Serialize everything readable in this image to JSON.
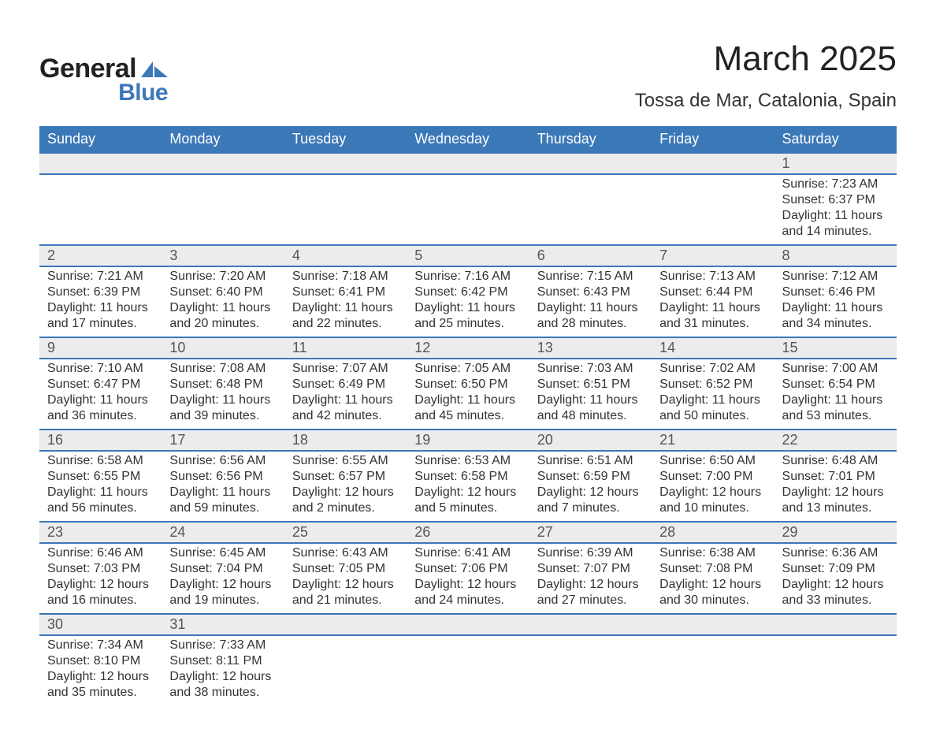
{
  "brand": {
    "line1": "General",
    "line2": "Blue",
    "accent_color": "#3b78b8"
  },
  "title": "March 2025",
  "location": "Tossa de Mar, Catalonia, Spain",
  "colors": {
    "header_bg": "#3b78b8",
    "header_text": "#ffffff",
    "daynum_bg": "#ececec",
    "row_divider": "#3b78b8",
    "text": "#333333",
    "page_bg": "#ffffff"
  },
  "typography": {
    "title_fontsize_pt": 33,
    "location_fontsize_pt": 18,
    "header_fontsize_pt": 14,
    "daynum_fontsize_pt": 14,
    "body_fontsize_pt": 12,
    "font_family": "Arial"
  },
  "calendar": {
    "type": "table",
    "columns": [
      "Sunday",
      "Monday",
      "Tuesday",
      "Wednesday",
      "Thursday",
      "Friday",
      "Saturday"
    ],
    "first_weekday_index": 6,
    "weeks": [
      [
        null,
        null,
        null,
        null,
        null,
        null,
        {
          "day": "1",
          "sunrise": "Sunrise: 7:23 AM",
          "sunset": "Sunset: 6:37 PM",
          "daylight": "Daylight: 11 hours and 14 minutes."
        }
      ],
      [
        {
          "day": "2",
          "sunrise": "Sunrise: 7:21 AM",
          "sunset": "Sunset: 6:39 PM",
          "daylight": "Daylight: 11 hours and 17 minutes."
        },
        {
          "day": "3",
          "sunrise": "Sunrise: 7:20 AM",
          "sunset": "Sunset: 6:40 PM",
          "daylight": "Daylight: 11 hours and 20 minutes."
        },
        {
          "day": "4",
          "sunrise": "Sunrise: 7:18 AM",
          "sunset": "Sunset: 6:41 PM",
          "daylight": "Daylight: 11 hours and 22 minutes."
        },
        {
          "day": "5",
          "sunrise": "Sunrise: 7:16 AM",
          "sunset": "Sunset: 6:42 PM",
          "daylight": "Daylight: 11 hours and 25 minutes."
        },
        {
          "day": "6",
          "sunrise": "Sunrise: 7:15 AM",
          "sunset": "Sunset: 6:43 PM",
          "daylight": "Daylight: 11 hours and 28 minutes."
        },
        {
          "day": "7",
          "sunrise": "Sunrise: 7:13 AM",
          "sunset": "Sunset: 6:44 PM",
          "daylight": "Daylight: 11 hours and 31 minutes."
        },
        {
          "day": "8",
          "sunrise": "Sunrise: 7:12 AM",
          "sunset": "Sunset: 6:46 PM",
          "daylight": "Daylight: 11 hours and 34 minutes."
        }
      ],
      [
        {
          "day": "9",
          "sunrise": "Sunrise: 7:10 AM",
          "sunset": "Sunset: 6:47 PM",
          "daylight": "Daylight: 11 hours and 36 minutes."
        },
        {
          "day": "10",
          "sunrise": "Sunrise: 7:08 AM",
          "sunset": "Sunset: 6:48 PM",
          "daylight": "Daylight: 11 hours and 39 minutes."
        },
        {
          "day": "11",
          "sunrise": "Sunrise: 7:07 AM",
          "sunset": "Sunset: 6:49 PM",
          "daylight": "Daylight: 11 hours and 42 minutes."
        },
        {
          "day": "12",
          "sunrise": "Sunrise: 7:05 AM",
          "sunset": "Sunset: 6:50 PM",
          "daylight": "Daylight: 11 hours and 45 minutes."
        },
        {
          "day": "13",
          "sunrise": "Sunrise: 7:03 AM",
          "sunset": "Sunset: 6:51 PM",
          "daylight": "Daylight: 11 hours and 48 minutes."
        },
        {
          "day": "14",
          "sunrise": "Sunrise: 7:02 AM",
          "sunset": "Sunset: 6:52 PM",
          "daylight": "Daylight: 11 hours and 50 minutes."
        },
        {
          "day": "15",
          "sunrise": "Sunrise: 7:00 AM",
          "sunset": "Sunset: 6:54 PM",
          "daylight": "Daylight: 11 hours and 53 minutes."
        }
      ],
      [
        {
          "day": "16",
          "sunrise": "Sunrise: 6:58 AM",
          "sunset": "Sunset: 6:55 PM",
          "daylight": "Daylight: 11 hours and 56 minutes."
        },
        {
          "day": "17",
          "sunrise": "Sunrise: 6:56 AM",
          "sunset": "Sunset: 6:56 PM",
          "daylight": "Daylight: 11 hours and 59 minutes."
        },
        {
          "day": "18",
          "sunrise": "Sunrise: 6:55 AM",
          "sunset": "Sunset: 6:57 PM",
          "daylight": "Daylight: 12 hours and 2 minutes."
        },
        {
          "day": "19",
          "sunrise": "Sunrise: 6:53 AM",
          "sunset": "Sunset: 6:58 PM",
          "daylight": "Daylight: 12 hours and 5 minutes."
        },
        {
          "day": "20",
          "sunrise": "Sunrise: 6:51 AM",
          "sunset": "Sunset: 6:59 PM",
          "daylight": "Daylight: 12 hours and 7 minutes."
        },
        {
          "day": "21",
          "sunrise": "Sunrise: 6:50 AM",
          "sunset": "Sunset: 7:00 PM",
          "daylight": "Daylight: 12 hours and 10 minutes."
        },
        {
          "day": "22",
          "sunrise": "Sunrise: 6:48 AM",
          "sunset": "Sunset: 7:01 PM",
          "daylight": "Daylight: 12 hours and 13 minutes."
        }
      ],
      [
        {
          "day": "23",
          "sunrise": "Sunrise: 6:46 AM",
          "sunset": "Sunset: 7:03 PM",
          "daylight": "Daylight: 12 hours and 16 minutes."
        },
        {
          "day": "24",
          "sunrise": "Sunrise: 6:45 AM",
          "sunset": "Sunset: 7:04 PM",
          "daylight": "Daylight: 12 hours and 19 minutes."
        },
        {
          "day": "25",
          "sunrise": "Sunrise: 6:43 AM",
          "sunset": "Sunset: 7:05 PM",
          "daylight": "Daylight: 12 hours and 21 minutes."
        },
        {
          "day": "26",
          "sunrise": "Sunrise: 6:41 AM",
          "sunset": "Sunset: 7:06 PM",
          "daylight": "Daylight: 12 hours and 24 minutes."
        },
        {
          "day": "27",
          "sunrise": "Sunrise: 6:39 AM",
          "sunset": "Sunset: 7:07 PM",
          "daylight": "Daylight: 12 hours and 27 minutes."
        },
        {
          "day": "28",
          "sunrise": "Sunrise: 6:38 AM",
          "sunset": "Sunset: 7:08 PM",
          "daylight": "Daylight: 12 hours and 30 minutes."
        },
        {
          "day": "29",
          "sunrise": "Sunrise: 6:36 AM",
          "sunset": "Sunset: 7:09 PM",
          "daylight": "Daylight: 12 hours and 33 minutes."
        }
      ],
      [
        {
          "day": "30",
          "sunrise": "Sunrise: 7:34 AM",
          "sunset": "Sunset: 8:10 PM",
          "daylight": "Daylight: 12 hours and 35 minutes."
        },
        {
          "day": "31",
          "sunrise": "Sunrise: 7:33 AM",
          "sunset": "Sunset: 8:11 PM",
          "daylight": "Daylight: 12 hours and 38 minutes."
        },
        null,
        null,
        null,
        null,
        null
      ]
    ]
  }
}
